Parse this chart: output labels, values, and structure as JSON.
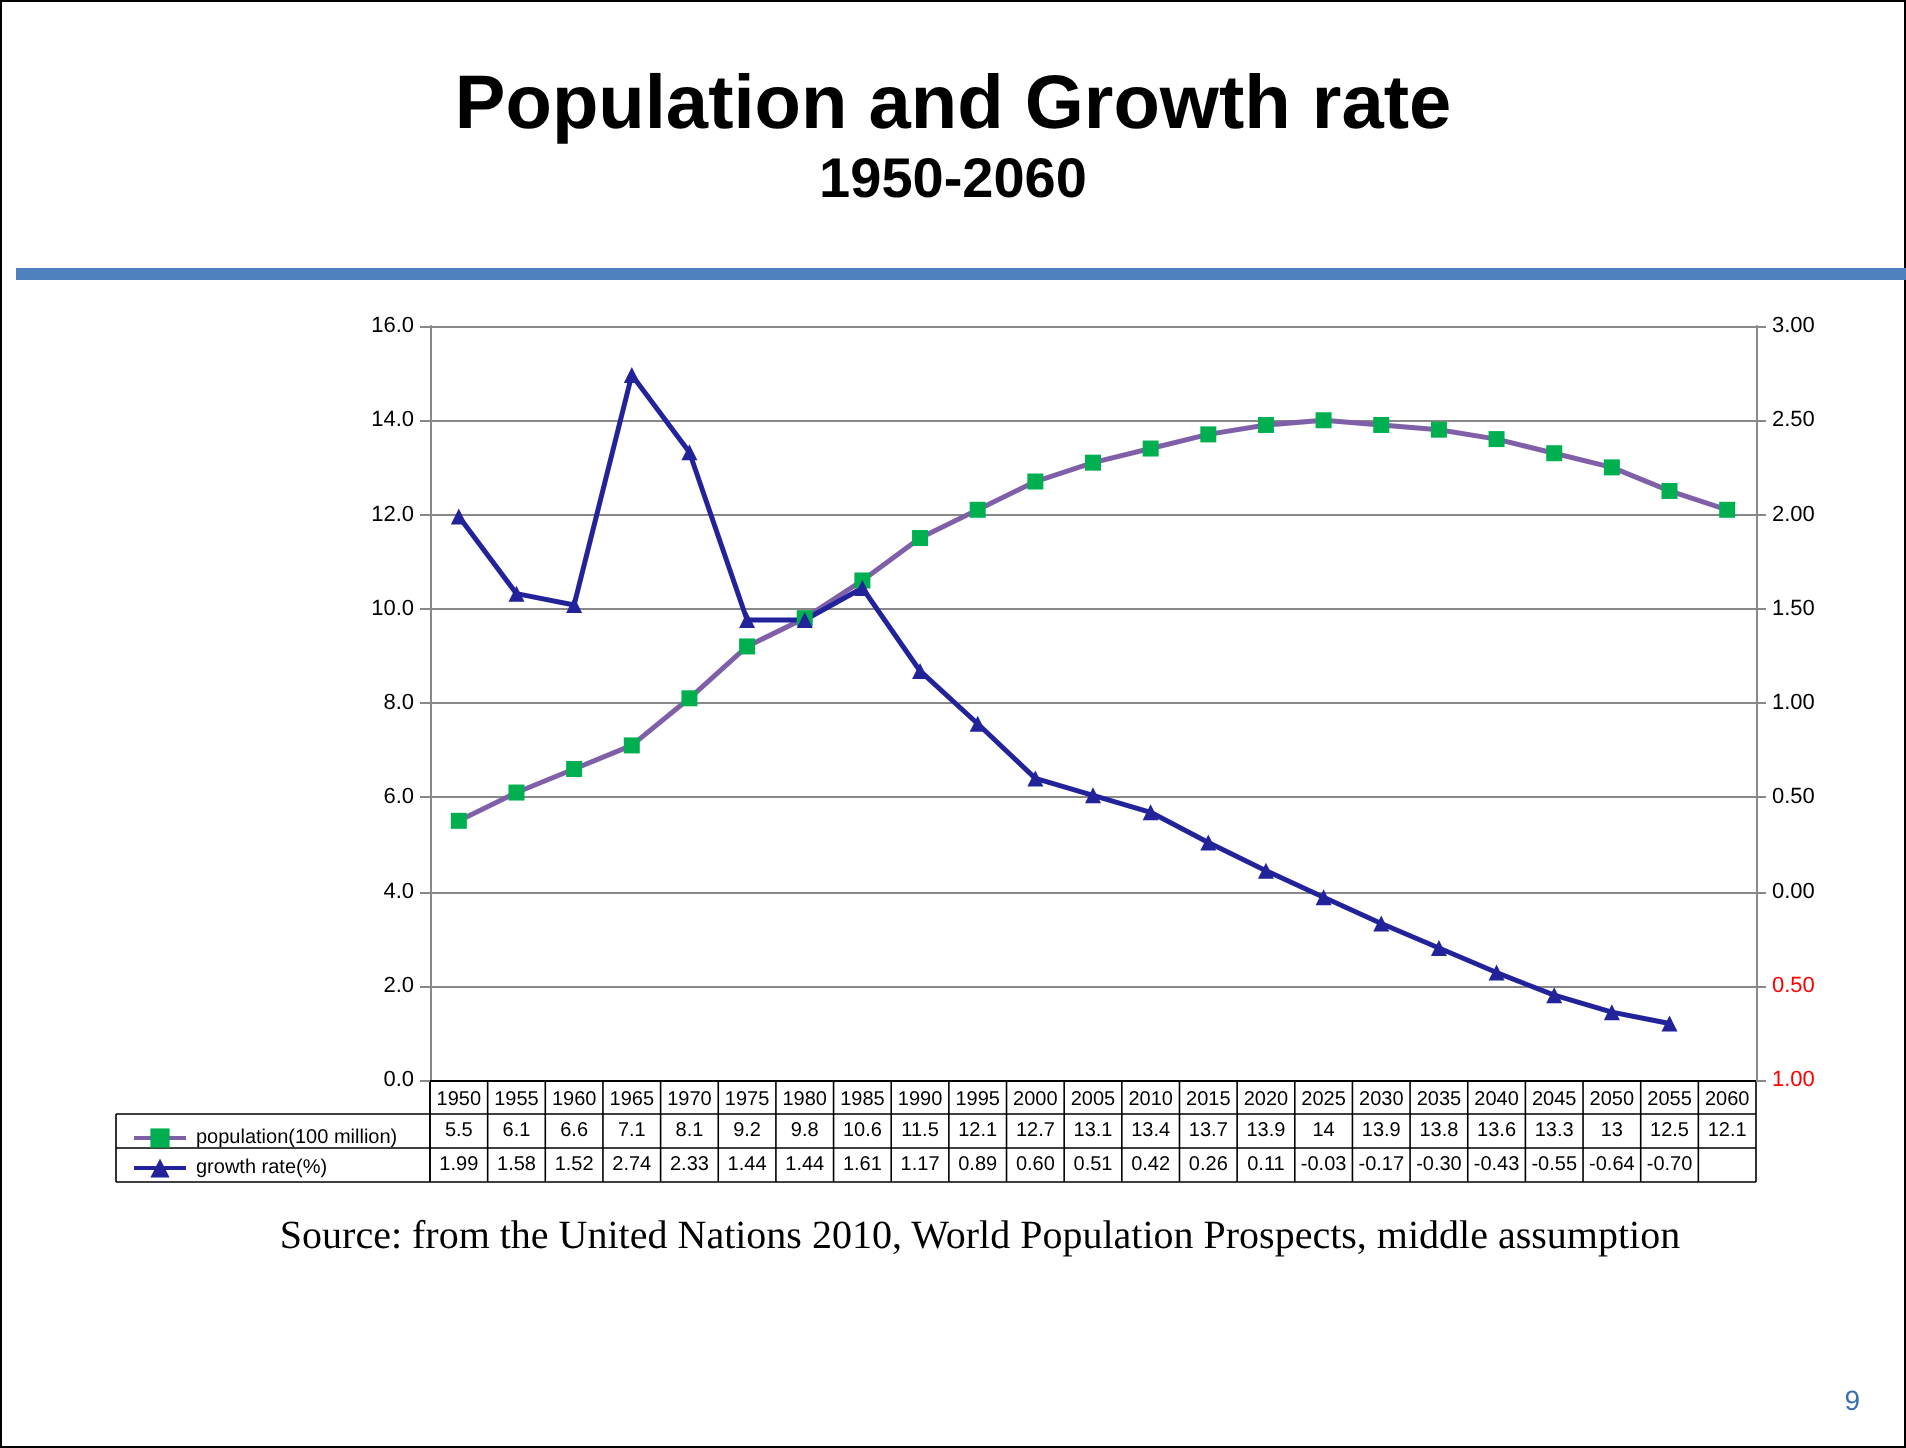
{
  "chart_data": {
    "type": "line",
    "title": "Population and Growth rate",
    "subtitle": "1950-2060",
    "categories": [
      "1950",
      "1955",
      "1960",
      "1965",
      "1970",
      "1975",
      "1980",
      "1985",
      "1990",
      "1995",
      "2000",
      "2005",
      "2010",
      "2015",
      "2020",
      "2025",
      "2030",
      "2035",
      "2040",
      "2045",
      "2050",
      "2055",
      "2060"
    ],
    "series": [
      {
        "name": "population(100 million)",
        "color": "#7f5fa8",
        "marker": "square",
        "colors": [
          "#00b050",
          "#00b050",
          "#00b050",
          "#00b050",
          "#00b050",
          "#00b050",
          "#00b050",
          "#00b050",
          "#00b050",
          "#00b050",
          "#00b050",
          "#00b050",
          "#00b050",
          "#00b050",
          "#00b050",
          "#00b050",
          "#00b050",
          "#00b050",
          "#00b050",
          "#00b050",
          "#00b050",
          "#00b050",
          "#00b050"
        ],
        "values": [
          5.5,
          6.1,
          6.6,
          7.1,
          8.1,
          9.2,
          9.8,
          10.6,
          11.5,
          12.1,
          12.7,
          13.1,
          13.4,
          13.7,
          13.9,
          14,
          13.9,
          13.8,
          13.6,
          13.3,
          13,
          12.5,
          12.1
        ],
        "value_labels": [
          "5.5",
          "6.1",
          "6.6",
          "7.1",
          "8.1",
          "9.2",
          "9.8",
          "10.6",
          "11.5",
          "12.1",
          "12.7",
          "13.1",
          "13.4",
          "13.7",
          "13.9",
          "14",
          "13.9",
          "13.8",
          "13.6",
          "13.3",
          "13",
          "12.5",
          "12.1"
        ]
      },
      {
        "name": "growth rate(%)",
        "color": "#22229a",
        "marker": "triangle",
        "axis": "y2",
        "values": [
          1.99,
          1.58,
          1.52,
          2.74,
          2.33,
          1.44,
          1.44,
          1.61,
          1.17,
          0.89,
          0.6,
          0.51,
          0.42,
          0.26,
          0.11,
          -0.03,
          -0.17,
          -0.3,
          -0.43,
          -0.55,
          -0.64,
          -0.7,
          null
        ],
        "value_labels": [
          "1.99",
          "1.58",
          "1.52",
          "2.74",
          "2.33",
          "1.44",
          "1.44",
          "1.61",
          "1.17",
          "0.89",
          "0.60",
          "0.51",
          "0.42",
          "0.26",
          "0.11",
          "-0.03",
          "-0.17",
          "-0.30",
          "-0.43",
          "-0.55",
          "-0.64",
          "-0.70",
          null
        ]
      }
    ],
    "ylim": [
      0,
      16
    ],
    "yticks": [
      {
        "value": 0,
        "label": "0.0"
      },
      {
        "value": 2,
        "label": "2.0"
      },
      {
        "value": 4,
        "label": "4.0"
      },
      {
        "value": 6,
        "label": "6.0"
      },
      {
        "value": 8,
        "label": "8.0"
      },
      {
        "value": 10,
        "label": "10.0"
      },
      {
        "value": 12,
        "label": "12.0"
      },
      {
        "value": 14,
        "label": "14.0"
      },
      {
        "value": 16,
        "label": "16.0"
      }
    ],
    "y2lim": [
      -1,
      3
    ],
    "y2ticks": [
      {
        "value": -1,
        "label": "1.00"
      },
      {
        "value": -0.5,
        "label": "0.50"
      },
      {
        "value": 0,
        "label": "0.00"
      },
      {
        "value": 0.5,
        "label": "0.50"
      },
      {
        "value": 1,
        "label": "1.00"
      },
      {
        "value": 1.5,
        "label": "1.50"
      },
      {
        "value": 2,
        "label": "2.00"
      },
      {
        "value": 2.5,
        "label": "2.50"
      },
      {
        "value": 3,
        "label": "3.00"
      }
    ],
    "grid": "y",
    "legend": "bottom left",
    "annotations": [
      "Source: from the United Nations 2010, World Population Prospects, middle assumption",
      "9"
    ]
  }
}
